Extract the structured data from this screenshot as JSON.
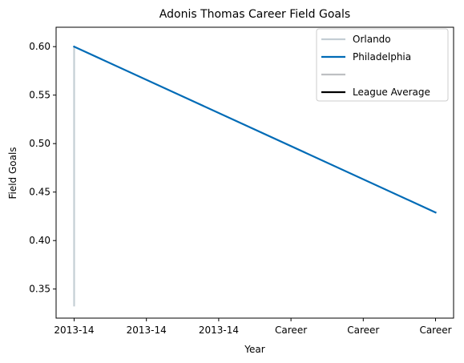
{
  "chart_data": {
    "type": "line",
    "title": "Adonis Thomas Career Field Goals",
    "xlabel": "Year",
    "ylabel": "Field Goals",
    "categories": [
      "2013-14",
      "2013-14",
      "2013-14",
      "Career",
      "Career",
      "Career"
    ],
    "ylim": [
      0.32,
      0.62
    ],
    "yticks": [
      0.35,
      0.4,
      0.45,
      0.5,
      0.55,
      0.6
    ],
    "ytick_labels": [
      "0.35",
      "0.40",
      "0.45",
      "0.50",
      "0.55",
      "0.60"
    ],
    "series": [
      {
        "name": "Orlando",
        "color": "#c4ced4",
        "points": [
          [
            0,
            0.333
          ],
          [
            0,
            0.6
          ]
        ]
      },
      {
        "name": "Philadelphia",
        "color": "#006bb6",
        "points": [
          [
            0,
            0.6
          ],
          [
            5,
            0.429
          ]
        ]
      },
      {
        "name": "",
        "color": "#bec0c2",
        "points": []
      },
      {
        "name": "League Average",
        "color": "#000000",
        "points": []
      }
    ],
    "legend_position": "top-right"
  }
}
